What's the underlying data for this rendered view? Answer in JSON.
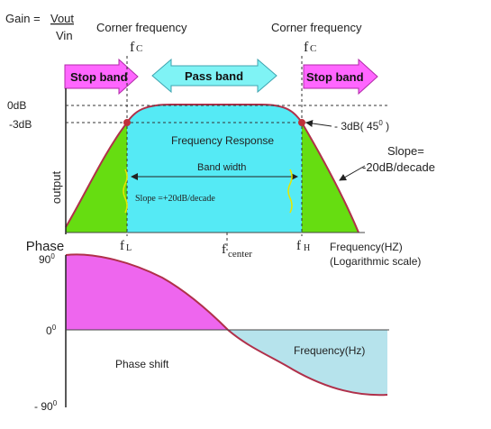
{
  "gain_formula": {
    "prefix": "Gain = ",
    "numerator": "Vout",
    "denominator": "Vin"
  },
  "corner_left": {
    "label": "Corner frequency",
    "symbol": "f",
    "subscript": "C"
  },
  "corner_right": {
    "label": "Corner frequency",
    "symbol": "f",
    "subscript": "C"
  },
  "bands": {
    "stop_left": "Stop band",
    "pass": "Pass band",
    "stop_right": "Stop band"
  },
  "levels": {
    "zero_db": "0dB",
    "minus3_db": "-3dB",
    "minus3_note_value": "- 3dB( 45",
    "minus3_note_degree": "0",
    "minus3_note_close": " )"
  },
  "response": {
    "title": "Frequency Response",
    "bandwidth": "Band width",
    "slope_pos": "Slope =+20dB/decade",
    "y_axis": "output"
  },
  "slope_neg": {
    "line1": "Slope=",
    "line2": "-20dB/decade"
  },
  "freq_marks": {
    "fl_symbol": "f",
    "fl_sub": "L",
    "fcenter_symbol": "f",
    "fcenter_sub": "center",
    "fh_symbol": "f",
    "fh_sub": "H"
  },
  "x_axis_note": {
    "line1": "Frequency(HZ)",
    "line2": "(Logarithmic scale)"
  },
  "phase": {
    "title": "Phase",
    "tick_90_value": "90",
    "tick_90_degree": "0",
    "tick_0_value": "0",
    "tick_0_degree": "0",
    "tick_m90_value": "- 90",
    "tick_m90_degree": "0",
    "shift_label": "Phase shift",
    "freq_label": "Frequency(Hz)"
  },
  "colors": {
    "stop_arrow": "#ff66ff",
    "pass_arrow": "#7ff3f5",
    "stop_fill": "#66dd11",
    "pass_fill": "#55eaf5",
    "curve": "#b0304a",
    "phase_pos_fill": "#ee66ee",
    "phase_neg_fill": "#b6e3ec",
    "marker": "#c0303a"
  }
}
